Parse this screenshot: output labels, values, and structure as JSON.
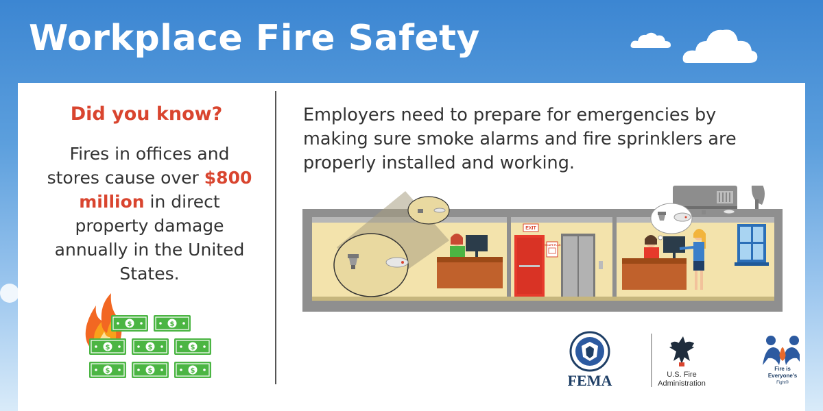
{
  "header": {
    "title": "Workplace Fire Safety"
  },
  "left_panel": {
    "question": "Did you know?",
    "fact_before": "Fires in offices and stores cause over",
    "fact_highlight": "$800 million",
    "fact_after": "in direct property damage annually in the United States."
  },
  "right_panel": {
    "intro": "Employers need to prepare for emergencies by making sure smoke alarms and fire sprinklers are properly installed and working."
  },
  "building": {
    "exit_sign": "EXIT",
    "escape_plan_label": "ESCAPE PLAN"
  },
  "logos": {
    "fema": "FEMA",
    "usfa_line1": "U.S. Fire",
    "usfa_line2": "Administration",
    "fief_line1": "Fire is",
    "fief_line2": "Everyone's",
    "fief_line3": "Fight®"
  },
  "icons": [
    "cloud-icon",
    "flame-icon",
    "money-bill-icon",
    "smoke-alarm-icon",
    "sprinkler-icon",
    "satellite-dish-icon",
    "fema-seal-icon",
    "usfa-eagle-icon",
    "fief-figures-icon"
  ],
  "colors": {
    "accent_red": "#d9452f",
    "sky_blue": "#3c86d2",
    "money_green": "#4bb543",
    "wall_tan": "#f3e3ac"
  }
}
